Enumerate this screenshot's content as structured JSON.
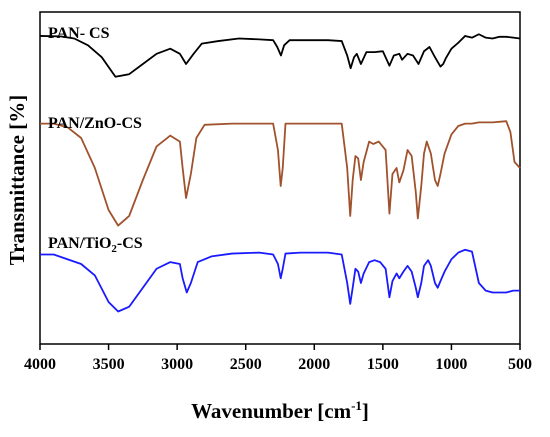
{
  "chart_data": {
    "type": "line",
    "title": "",
    "xlabel": "Wavenumber [cm",
    "xlabel_sup": "-1",
    "xlabel_end": "]",
    "ylabel": "Transmittance [%]",
    "x_reversed": true,
    "xlim": [
      4000,
      500
    ],
    "x_ticks": [
      4000,
      3500,
      3000,
      2500,
      2000,
      1500,
      1000,
      500
    ],
    "x_tick_labels": [
      "4000",
      "3500",
      "3000",
      "2500",
      "2000",
      "1500",
      "1000",
      "500"
    ],
    "y_tick_labels_shown": false,
    "grid": false,
    "series": [
      {
        "name": "PAN- CS",
        "label_parts": [
          "PAN- CS"
        ],
        "color": "#000000",
        "points": [
          [
            4000,
            0.93
          ],
          [
            3850,
            0.925
          ],
          [
            3750,
            0.9
          ],
          [
            3650,
            0.82
          ],
          [
            3550,
            0.68
          ],
          [
            3450,
            0.45
          ],
          [
            3350,
            0.48
          ],
          [
            3250,
            0.6
          ],
          [
            3150,
            0.72
          ],
          [
            3050,
            0.78
          ],
          [
            2980,
            0.72
          ],
          [
            2935,
            0.6
          ],
          [
            2880,
            0.72
          ],
          [
            2820,
            0.84
          ],
          [
            2700,
            0.87
          ],
          [
            2550,
            0.9
          ],
          [
            2400,
            0.89
          ],
          [
            2300,
            0.88
          ],
          [
            2270,
            0.8
          ],
          [
            2243,
            0.7
          ],
          [
            2220,
            0.82
          ],
          [
            2180,
            0.88
          ],
          [
            2050,
            0.88
          ],
          [
            1900,
            0.88
          ],
          [
            1800,
            0.87
          ],
          [
            1760,
            0.7
          ],
          [
            1735,
            0.55
          ],
          [
            1710,
            0.68
          ],
          [
            1690,
            0.72
          ],
          [
            1660,
            0.6
          ],
          [
            1620,
            0.74
          ],
          [
            1560,
            0.74
          ],
          [
            1500,
            0.75
          ],
          [
            1452,
            0.58
          ],
          [
            1420,
            0.7
          ],
          [
            1380,
            0.72
          ],
          [
            1360,
            0.65
          ],
          [
            1320,
            0.72
          ],
          [
            1280,
            0.7
          ],
          [
            1240,
            0.6
          ],
          [
            1200,
            0.75
          ],
          [
            1160,
            0.8
          ],
          [
            1120,
            0.68
          ],
          [
            1080,
            0.57
          ],
          [
            1060,
            0.6
          ],
          [
            1040,
            0.67
          ],
          [
            1000,
            0.78
          ],
          [
            950,
            0.85
          ],
          [
            900,
            0.93
          ],
          [
            850,
            0.91
          ],
          [
            800,
            0.95
          ],
          [
            750,
            0.91
          ],
          [
            700,
            0.9
          ],
          [
            650,
            0.92
          ],
          [
            600,
            0.92
          ],
          [
            550,
            0.91
          ],
          [
            500,
            0.9
          ]
        ]
      },
      {
        "name": "PAN/ZnO-CS",
        "label_parts": [
          "PAN/ZnO-CS"
        ],
        "color": "#a0522d",
        "points": [
          [
            4000,
            0.97
          ],
          [
            3900,
            0.97
          ],
          [
            3800,
            0.94
          ],
          [
            3700,
            0.85
          ],
          [
            3600,
            0.6
          ],
          [
            3500,
            0.25
          ],
          [
            3430,
            0.12
          ],
          [
            3350,
            0.2
          ],
          [
            3250,
            0.5
          ],
          [
            3150,
            0.78
          ],
          [
            3050,
            0.87
          ],
          [
            2980,
            0.82
          ],
          [
            2960,
            0.6
          ],
          [
            2935,
            0.35
          ],
          [
            2900,
            0.55
          ],
          [
            2860,
            0.85
          ],
          [
            2800,
            0.96
          ],
          [
            2600,
            0.97
          ],
          [
            2400,
            0.97
          ],
          [
            2300,
            0.97
          ],
          [
            2265,
            0.75
          ],
          [
            2245,
            0.45
          ],
          [
            2230,
            0.6
          ],
          [
            2210,
            0.97
          ],
          [
            2100,
            0.97
          ],
          [
            2000,
            0.97
          ],
          [
            1900,
            0.97
          ],
          [
            1800,
            0.97
          ],
          [
            1760,
            0.6
          ],
          [
            1738,
            0.2
          ],
          [
            1720,
            0.5
          ],
          [
            1700,
            0.7
          ],
          [
            1680,
            0.68
          ],
          [
            1660,
            0.5
          ],
          [
            1640,
            0.65
          ],
          [
            1600,
            0.82
          ],
          [
            1570,
            0.8
          ],
          [
            1530,
            0.82
          ],
          [
            1480,
            0.75
          ],
          [
            1452,
            0.22
          ],
          [
            1430,
            0.55
          ],
          [
            1400,
            0.6
          ],
          [
            1380,
            0.48
          ],
          [
            1350,
            0.58
          ],
          [
            1320,
            0.75
          ],
          [
            1290,
            0.7
          ],
          [
            1260,
            0.4
          ],
          [
            1245,
            0.18
          ],
          [
            1220,
            0.45
          ],
          [
            1200,
            0.72
          ],
          [
            1180,
            0.82
          ],
          [
            1150,
            0.72
          ],
          [
            1120,
            0.5
          ],
          [
            1100,
            0.45
          ],
          [
            1080,
            0.55
          ],
          [
            1050,
            0.72
          ],
          [
            1000,
            0.88
          ],
          [
            950,
            0.95
          ],
          [
            900,
            0.97
          ],
          [
            850,
            0.97
          ],
          [
            800,
            0.98
          ],
          [
            700,
            0.98
          ],
          [
            600,
            0.99
          ],
          [
            570,
            0.9
          ],
          [
            540,
            0.65
          ],
          [
            500,
            0.6
          ]
        ]
      },
      {
        "name": "PAN/TiO2-CS",
        "label_parts": [
          "PAN/TiO",
          "2",
          "-CS"
        ],
        "color": "#1a1aff",
        "points": [
          [
            4000,
            0.9
          ],
          [
            3900,
            0.9
          ],
          [
            3800,
            0.85
          ],
          [
            3700,
            0.8
          ],
          [
            3600,
            0.68
          ],
          [
            3500,
            0.4
          ],
          [
            3430,
            0.3
          ],
          [
            3350,
            0.35
          ],
          [
            3250,
            0.55
          ],
          [
            3150,
            0.75
          ],
          [
            3050,
            0.82
          ],
          [
            2980,
            0.8
          ],
          [
            2960,
            0.65
          ],
          [
            2930,
            0.5
          ],
          [
            2900,
            0.6
          ],
          [
            2850,
            0.82
          ],
          [
            2750,
            0.88
          ],
          [
            2600,
            0.91
          ],
          [
            2400,
            0.92
          ],
          [
            2300,
            0.9
          ],
          [
            2265,
            0.8
          ],
          [
            2245,
            0.65
          ],
          [
            2230,
            0.75
          ],
          [
            2210,
            0.91
          ],
          [
            2100,
            0.92
          ],
          [
            2000,
            0.92
          ],
          [
            1900,
            0.92
          ],
          [
            1800,
            0.9
          ],
          [
            1760,
            0.6
          ],
          [
            1738,
            0.38
          ],
          [
            1720,
            0.55
          ],
          [
            1700,
            0.75
          ],
          [
            1680,
            0.72
          ],
          [
            1660,
            0.6
          ],
          [
            1640,
            0.7
          ],
          [
            1600,
            0.82
          ],
          [
            1560,
            0.84
          ],
          [
            1520,
            0.82
          ],
          [
            1480,
            0.75
          ],
          [
            1452,
            0.45
          ],
          [
            1430,
            0.62
          ],
          [
            1400,
            0.7
          ],
          [
            1380,
            0.65
          ],
          [
            1350,
            0.72
          ],
          [
            1320,
            0.78
          ],
          [
            1290,
            0.72
          ],
          [
            1260,
            0.55
          ],
          [
            1245,
            0.45
          ],
          [
            1220,
            0.6
          ],
          [
            1200,
            0.78
          ],
          [
            1170,
            0.84
          ],
          [
            1150,
            0.78
          ],
          [
            1120,
            0.6
          ],
          [
            1100,
            0.55
          ],
          [
            1080,
            0.62
          ],
          [
            1050,
            0.72
          ],
          [
            1000,
            0.85
          ],
          [
            950,
            0.92
          ],
          [
            900,
            0.95
          ],
          [
            850,
            0.93
          ],
          [
            800,
            0.6
          ],
          [
            750,
            0.52
          ],
          [
            700,
            0.5
          ],
          [
            650,
            0.5
          ],
          [
            600,
            0.5
          ],
          [
            550,
            0.52
          ],
          [
            500,
            0.52
          ]
        ]
      }
    ]
  }
}
